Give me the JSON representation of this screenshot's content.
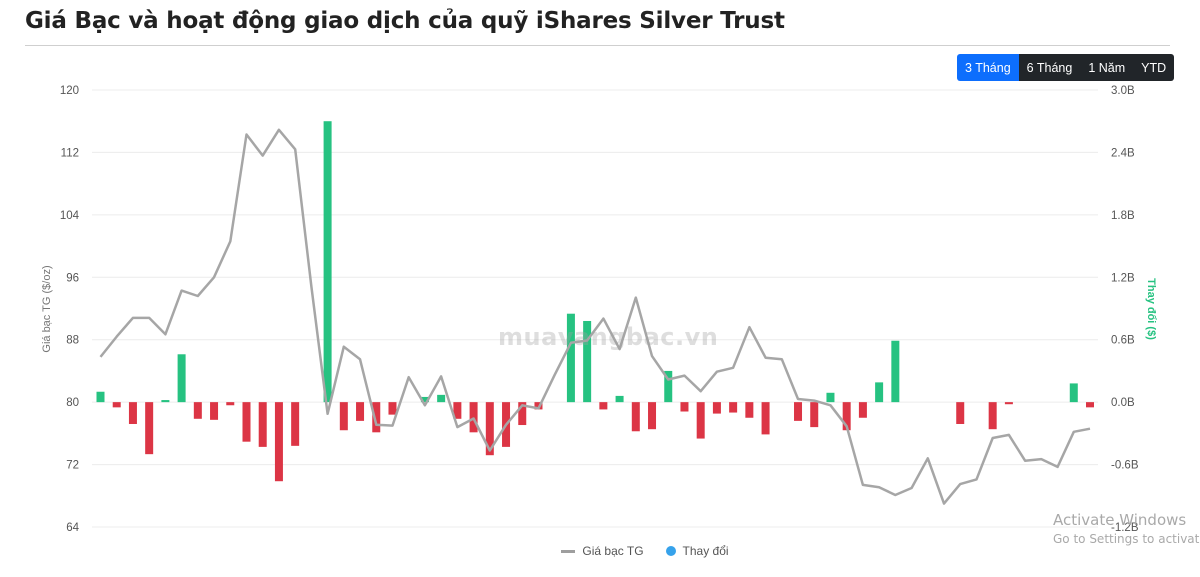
{
  "header": {
    "title": "Giá Bạc và hoạt động giao dịch của quỹ iShares Silver Trust"
  },
  "range_buttons": [
    {
      "label": "3 Tháng",
      "active": true
    },
    {
      "label": "6 Tháng",
      "active": false
    },
    {
      "label": "1 Năm",
      "active": false
    },
    {
      "label": "YTD",
      "active": false
    }
  ],
  "watermark": "muavangbac.vn",
  "os_overlay": {
    "line1": "Activate Windows",
    "line2": "Go to Settings to activate"
  },
  "chart_data": {
    "type": "bar",
    "ylabel_left": "Giá bạc TG ($/oz)",
    "ylabel_right": "Thay đổi ($)",
    "left_axis": {
      "min": 64,
      "max": 120,
      "ticks": [
        "120",
        "112",
        "104",
        "96",
        "88",
        "80",
        "72",
        "64"
      ]
    },
    "right_axis": {
      "min": -1.2,
      "max": 3.0,
      "ticks": [
        "3.0B",
        "2.4B",
        "1.8B",
        "1.2B",
        "0.6B",
        "0.0B",
        "-0.6B",
        "-1.2B"
      ]
    },
    "grid": true,
    "legend": {
      "placement": "bottom",
      "entries": [
        "Giá bạc TG",
        "Thay đổi"
      ]
    },
    "colors": {
      "line": "#a6a6a6",
      "positive": "#26c281",
      "negative": "#dc3545",
      "right_axis_label": "#26c281",
      "legend_dot": "#36a2eb"
    },
    "series": [
      {
        "type": "line",
        "axis": "left",
        "values": [
          85.8,
          88.4,
          90.8,
          90.8,
          88.7,
          94.3,
          93.6,
          96.0,
          100.6,
          114.3,
          111.6,
          114.9,
          112.4,
          94.8,
          78.5,
          87.1,
          85.5,
          77.1,
          77.0,
          83.2,
          79.6,
          83.3,
          76.8,
          77.9,
          73.8,
          77.1,
          79.6,
          79.2,
          83.5,
          87.6,
          87.9,
          90.7,
          86.8,
          93.4,
          85.9,
          82.9,
          83.4,
          81.4,
          83.9,
          84.4,
          89.6,
          85.7,
          85.5,
          80.4,
          80.2,
          79.6,
          76.9,
          69.4,
          69.1,
          68.1,
          69.0,
          72.8,
          67.0,
          69.5,
          70.1,
          75.4,
          75.8,
          72.5,
          72.7,
          71.7,
          76.2,
          76.6
        ]
      },
      {
        "type": "bar",
        "axis": "right",
        "unit": "B",
        "values": [
          0.1,
          -0.05,
          -0.21,
          -0.5,
          0.02,
          0.46,
          -0.16,
          -0.17,
          -0.03,
          -0.38,
          -0.43,
          -0.76,
          -0.42,
          0.0,
          2.7,
          -0.27,
          -0.18,
          -0.29,
          -0.12,
          0.0,
          0.05,
          0.07,
          -0.16,
          -0.29,
          -0.51,
          -0.43,
          -0.22,
          -0.07,
          0.0,
          0.85,
          0.78,
          -0.07,
          0.06,
          -0.28,
          -0.26,
          0.3,
          -0.09,
          -0.35,
          -0.11,
          -0.1,
          -0.15,
          -0.31,
          0.0,
          -0.18,
          -0.24,
          0.09,
          -0.27,
          -0.15,
          0.19,
          0.59,
          0.0,
          0.0,
          0.0,
          -0.21,
          0.0,
          -0.26,
          -0.02,
          0.0,
          0.0,
          0.0,
          0.18,
          -0.05
        ]
      }
    ]
  }
}
